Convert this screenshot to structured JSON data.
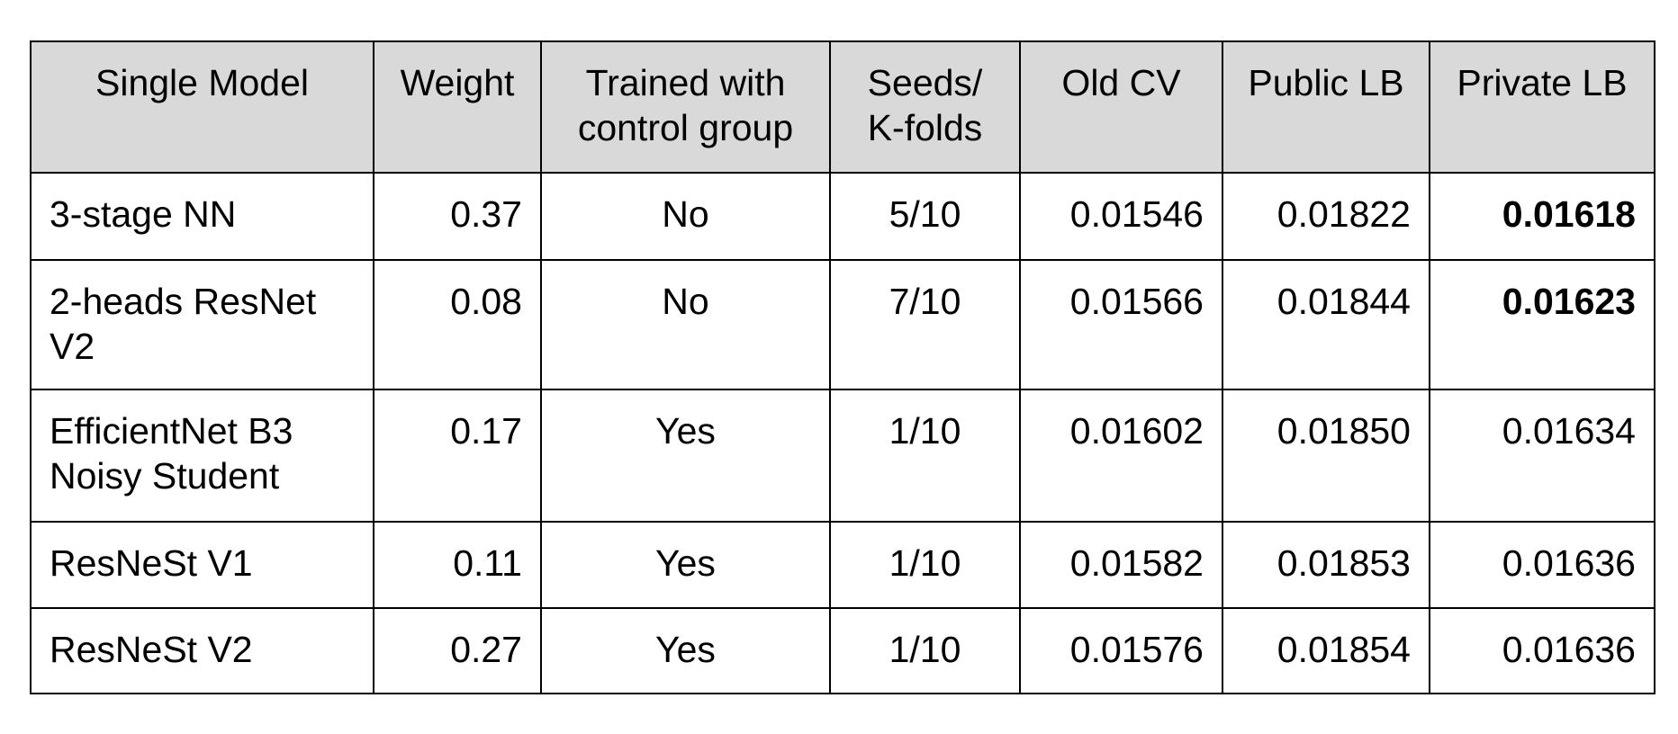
{
  "table": {
    "header": [
      "Single Model",
      "Weight",
      "Trained with control group",
      "Seeds/ K-folds",
      "Old CV",
      "Public LB",
      "Private LB"
    ],
    "rows": [
      [
        "3-stage NN",
        "0.37",
        "No",
        "5/10",
        "0.01546",
        "0.01822",
        "0.01618"
      ],
      [
        "2-heads ResNet V2",
        "0.08",
        "No",
        "7/10",
        "0.01566",
        "0.01844",
        "0.01623"
      ],
      [
        "EfficientNet B3 Noisy Student",
        "0.17",
        "Yes",
        "1/10",
        "0.01602",
        "0.01850",
        "0.01634"
      ],
      [
        "ResNeSt V1",
        "0.11",
        "Yes",
        "1/10",
        "0.01582",
        "0.01853",
        "0.01636"
      ],
      [
        "ResNeSt V2",
        "0.27",
        "Yes",
        "1/10",
        "0.01576",
        "0.01854",
        "0.01636"
      ]
    ]
  }
}
